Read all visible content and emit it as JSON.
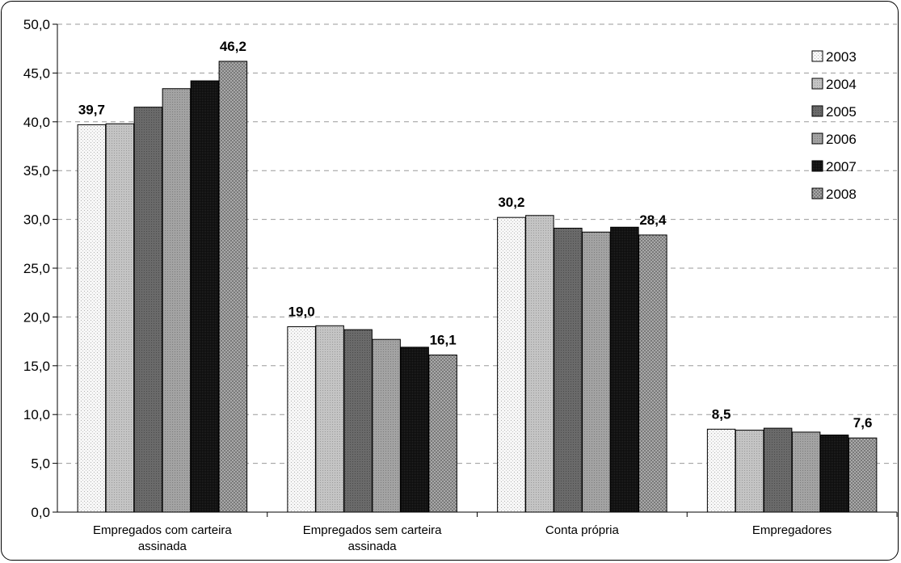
{
  "chart_data": {
    "type": "bar",
    "title": "",
    "xlabel": "",
    "ylabel": "",
    "ylim": [
      0,
      50
    ],
    "yticks": [
      "0,0",
      "5,0",
      "10,0",
      "15,0",
      "20,0",
      "25,0",
      "30,0",
      "35,0",
      "40,0",
      "45,0",
      "50,0"
    ],
    "grid": true,
    "legend_position": "top-right",
    "categories": [
      [
        "Empregados com carteira",
        "assinada"
      ],
      [
        "Empregados sem carteira",
        "assinada"
      ],
      [
        "Conta própria"
      ],
      [
        "Empregadores"
      ]
    ],
    "series": [
      {
        "name": "2003",
        "values": [
          39.7,
          19.0,
          30.2,
          8.5
        ],
        "color": "#f2f2f2",
        "pattern": "dots-light"
      },
      {
        "name": "2004",
        "values": [
          39.8,
          19.1,
          30.4,
          8.4
        ],
        "color": "#bdbdbd",
        "pattern": "fine-grey"
      },
      {
        "name": "2005",
        "values": [
          41.5,
          18.7,
          29.1,
          8.6
        ],
        "color": "#666666",
        "pattern": "dark-grey"
      },
      {
        "name": "2006",
        "values": [
          43.4,
          17.7,
          28.7,
          8.2
        ],
        "color": "#9c9c9c",
        "pattern": "mid-grey"
      },
      {
        "name": "2007",
        "values": [
          44.2,
          16.9,
          29.2,
          7.9
        ],
        "color": "#111111",
        "pattern": "black"
      },
      {
        "name": "2008",
        "values": [
          46.2,
          16.1,
          28.4,
          7.6
        ],
        "color": "#a9a9a9",
        "pattern": "crosshatch"
      }
    ],
    "data_labels": [
      {
        "category": 0,
        "series": 0,
        "text": "39,7"
      },
      {
        "category": 0,
        "series": 5,
        "text": "46,2"
      },
      {
        "category": 1,
        "series": 0,
        "text": "19,0"
      },
      {
        "category": 1,
        "series": 5,
        "text": "16,1"
      },
      {
        "category": 2,
        "series": 0,
        "text": "30,2"
      },
      {
        "category": 2,
        "series": 5,
        "text": "28,4"
      },
      {
        "category": 3,
        "series": 0,
        "text": "8,5"
      },
      {
        "category": 3,
        "series": 5,
        "text": "7,6"
      }
    ]
  }
}
